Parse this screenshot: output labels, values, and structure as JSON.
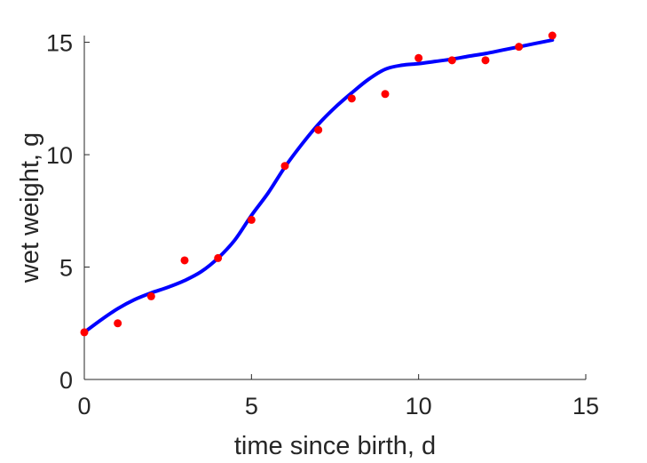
{
  "chart_data": {
    "type": "scatter",
    "title": "",
    "xlabel": "time since birth, d",
    "ylabel": "wet weight, g",
    "xlim": [
      0,
      15
    ],
    "ylim": [
      0,
      15.3
    ],
    "xticks": [
      "0",
      "5",
      "10",
      "15"
    ],
    "yticks": [
      "0",
      "5",
      "10",
      "15"
    ],
    "grid": false,
    "legend": "none",
    "series": [
      {
        "kind": "points",
        "color": "#ff0000",
        "x": [
          0,
          1,
          2,
          3,
          4,
          5,
          6,
          7,
          8,
          9,
          10,
          11,
          12,
          13,
          14
        ],
        "y": [
          2.1,
          2.5,
          3.7,
          5.3,
          5.4,
          7.1,
          9.5,
          11.1,
          12.5,
          12.7,
          14.3,
          14.2,
          14.2,
          14.8,
          15.3
        ]
      },
      {
        "kind": "fit-line",
        "color": "#0000ff",
        "x": [
          0,
          0.5,
          1,
          1.5,
          2,
          2.5,
          3,
          3.5,
          4,
          4.5,
          5,
          5.5,
          6,
          6.5,
          7,
          7.5,
          8,
          8.5,
          9,
          9.5,
          10,
          10.5,
          11,
          11.5,
          12,
          12.5,
          13,
          13.5,
          14
        ],
        "y": [
          2.1,
          2.65,
          3.15,
          3.55,
          3.85,
          4.1,
          4.4,
          4.8,
          5.4,
          6.2,
          7.3,
          8.3,
          9.45,
          10.45,
          11.35,
          12.1,
          12.75,
          13.35,
          13.8,
          13.98,
          14.05,
          14.15,
          14.25,
          14.38,
          14.5,
          14.65,
          14.8,
          14.95,
          15.1
        ]
      }
    ]
  }
}
